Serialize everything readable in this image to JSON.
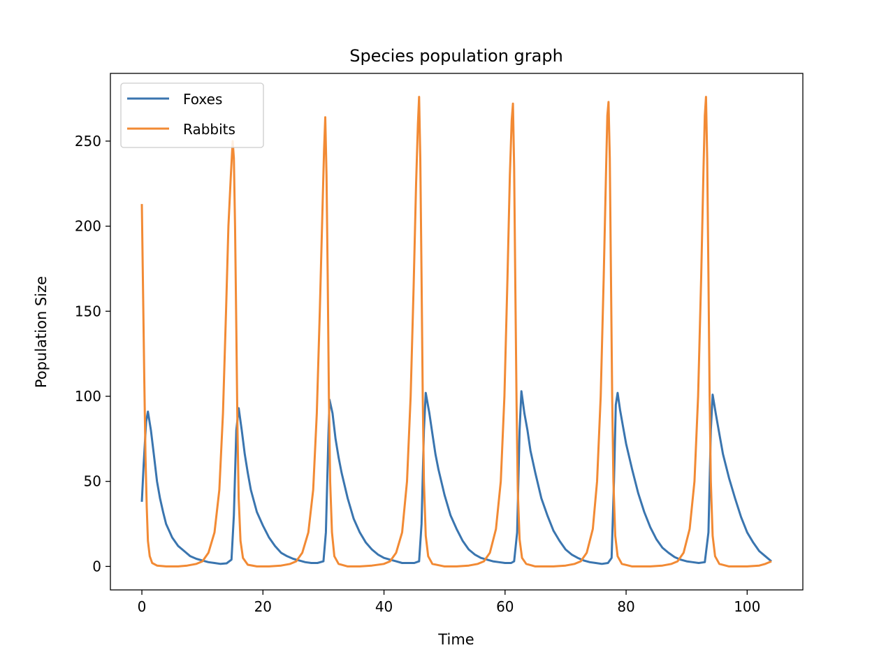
{
  "chart_data": {
    "type": "line",
    "title": "Species population graph",
    "xlabel": "Time",
    "ylabel": "Population Size",
    "xlim": [
      -5.2,
      109.2
    ],
    "ylim": [
      -13.8,
      289.8
    ],
    "xticks": [
      0,
      20,
      40,
      60,
      80,
      100
    ],
    "yticks": [
      0,
      50,
      100,
      150,
      200,
      250
    ],
    "grid": false,
    "legend_position": "top-left",
    "series": [
      {
        "name": "Foxes",
        "color": "#3a75af",
        "points": [
          [
            0,
            38
          ],
          [
            0.3,
            60
          ],
          [
            0.7,
            85
          ],
          [
            1.0,
            91
          ],
          [
            1.5,
            80
          ],
          [
            2.0,
            65
          ],
          [
            2.5,
            50
          ],
          [
            3.0,
            40
          ],
          [
            3.5,
            32
          ],
          [
            4.0,
            25
          ],
          [
            5.0,
            17
          ],
          [
            6.0,
            12
          ],
          [
            7.0,
            9
          ],
          [
            8.0,
            6
          ],
          [
            9.0,
            4.5
          ],
          [
            10.0,
            3.5
          ],
          [
            11.0,
            2.5
          ],
          [
            12.0,
            2
          ],
          [
            13.0,
            1.5
          ],
          [
            14.0,
            1.8
          ],
          [
            14.8,
            4
          ],
          [
            15.2,
            30
          ],
          [
            15.6,
            80
          ],
          [
            16.0,
            93
          ],
          [
            16.5,
            80
          ],
          [
            17.0,
            66
          ],
          [
            17.5,
            55
          ],
          [
            18.0,
            45
          ],
          [
            19.0,
            32
          ],
          [
            20.0,
            24
          ],
          [
            21.0,
            17
          ],
          [
            22.0,
            12
          ],
          [
            23.0,
            8
          ],
          [
            24.0,
            6
          ],
          [
            25.0,
            4.5
          ],
          [
            26.0,
            3.5
          ],
          [
            27.0,
            2.5
          ],
          [
            28.0,
            2
          ],
          [
            29.0,
            2
          ],
          [
            30.0,
            3
          ],
          [
            30.4,
            20
          ],
          [
            30.8,
            75
          ],
          [
            31.0,
            98
          ],
          [
            31.5,
            90
          ],
          [
            32.0,
            75
          ],
          [
            32.5,
            64
          ],
          [
            33.0,
            55
          ],
          [
            34.0,
            40
          ],
          [
            35.0,
            28
          ],
          [
            36.0,
            20
          ],
          [
            37.0,
            14
          ],
          [
            38.0,
            10
          ],
          [
            39.0,
            7
          ],
          [
            40.0,
            5
          ],
          [
            41.0,
            4
          ],
          [
            42.0,
            3
          ],
          [
            43.0,
            2
          ],
          [
            44.0,
            2
          ],
          [
            45.0,
            2
          ],
          [
            45.8,
            3
          ],
          [
            46.2,
            25
          ],
          [
            46.6,
            80
          ],
          [
            46.9,
            102
          ],
          [
            47.5,
            90
          ],
          [
            48.0,
            78
          ],
          [
            48.5,
            66
          ],
          [
            49.0,
            57
          ],
          [
            50.0,
            42
          ],
          [
            51.0,
            30
          ],
          [
            52.0,
            22
          ],
          [
            53.0,
            15
          ],
          [
            54.0,
            10
          ],
          [
            55.0,
            7
          ],
          [
            56.0,
            5
          ],
          [
            57.0,
            4
          ],
          [
            58.0,
            3
          ],
          [
            59.0,
            2.5
          ],
          [
            60.0,
            2
          ],
          [
            61.0,
            2
          ],
          [
            61.5,
            3
          ],
          [
            62.0,
            20
          ],
          [
            62.4,
            80
          ],
          [
            62.7,
            103
          ],
          [
            63.2,
            90
          ],
          [
            63.7,
            80
          ],
          [
            64.2,
            68
          ],
          [
            65.0,
            55
          ],
          [
            66.0,
            40
          ],
          [
            67.0,
            30
          ],
          [
            68.0,
            21
          ],
          [
            69.0,
            15
          ],
          [
            70.0,
            10
          ],
          [
            71.0,
            7
          ],
          [
            72.0,
            5
          ],
          [
            73.0,
            3.5
          ],
          [
            74.0,
            2.5
          ],
          [
            75.0,
            2
          ],
          [
            76.0,
            1.5
          ],
          [
            77.0,
            2
          ],
          [
            77.6,
            5
          ],
          [
            78.0,
            50
          ],
          [
            78.3,
            95
          ],
          [
            78.6,
            102
          ],
          [
            79.0,
            92
          ],
          [
            79.5,
            82
          ],
          [
            80.0,
            72
          ],
          [
            81.0,
            57
          ],
          [
            82.0,
            43
          ],
          [
            83.0,
            32
          ],
          [
            84.0,
            23
          ],
          [
            85.0,
            16
          ],
          [
            86.0,
            11
          ],
          [
            87.0,
            8
          ],
          [
            88.0,
            5.5
          ],
          [
            89.0,
            4
          ],
          [
            90.0,
            3
          ],
          [
            91.0,
            2.5
          ],
          [
            92.0,
            2
          ],
          [
            93.0,
            2.5
          ],
          [
            93.6,
            20
          ],
          [
            94.0,
            80
          ],
          [
            94.3,
            101
          ],
          [
            94.8,
            90
          ],
          [
            95.3,
            80
          ],
          [
            96.0,
            66
          ],
          [
            97.0,
            52
          ],
          [
            98.0,
            40
          ],
          [
            99.0,
            29
          ],
          [
            100.0,
            20
          ],
          [
            101.0,
            14
          ],
          [
            102.0,
            9
          ],
          [
            103.0,
            6
          ],
          [
            104.0,
            3
          ]
        ]
      },
      {
        "name": "Rabbits",
        "color": "#f28a34",
        "points": [
          [
            0,
            213
          ],
          [
            0.2,
            160
          ],
          [
            0.4,
            110
          ],
          [
            0.6,
            65
          ],
          [
            0.8,
            35
          ],
          [
            1.0,
            15
          ],
          [
            1.3,
            6
          ],
          [
            1.7,
            2
          ],
          [
            2.5,
            0.5
          ],
          [
            4.0,
            0
          ],
          [
            6.0,
            0
          ],
          [
            7.5,
            0.5
          ],
          [
            9.0,
            1.5
          ],
          [
            10.0,
            3
          ],
          [
            11.0,
            8
          ],
          [
            12.0,
            20
          ],
          [
            12.8,
            45
          ],
          [
            13.4,
            90
          ],
          [
            13.9,
            150
          ],
          [
            14.3,
            200
          ],
          [
            14.7,
            230
          ],
          [
            15.0,
            250
          ],
          [
            15.2,
            240
          ],
          [
            15.4,
            200
          ],
          [
            15.6,
            140
          ],
          [
            15.8,
            80
          ],
          [
            16.0,
            40
          ],
          [
            16.3,
            15
          ],
          [
            16.7,
            5
          ],
          [
            17.5,
            1
          ],
          [
            19.0,
            0
          ],
          [
            21.0,
            0
          ],
          [
            23.0,
            0.5
          ],
          [
            24.5,
            1.5
          ],
          [
            25.5,
            3
          ],
          [
            26.5,
            8
          ],
          [
            27.5,
            20
          ],
          [
            28.3,
            45
          ],
          [
            28.9,
            90
          ],
          [
            29.4,
            150
          ],
          [
            29.8,
            205
          ],
          [
            30.1,
            245
          ],
          [
            30.3,
            264
          ],
          [
            30.5,
            230
          ],
          [
            30.7,
            170
          ],
          [
            30.9,
            100
          ],
          [
            31.1,
            50
          ],
          [
            31.4,
            20
          ],
          [
            31.8,
            6
          ],
          [
            32.5,
            1.5
          ],
          [
            34.0,
            0
          ],
          [
            36.0,
            0
          ],
          [
            38.0,
            0.5
          ],
          [
            40.0,
            1.5
          ],
          [
            41.0,
            3
          ],
          [
            42.0,
            8
          ],
          [
            43.0,
            20
          ],
          [
            43.8,
            50
          ],
          [
            44.4,
            100
          ],
          [
            44.9,
            165
          ],
          [
            45.3,
            225
          ],
          [
            45.6,
            260
          ],
          [
            45.8,
            276
          ],
          [
            46.0,
            240
          ],
          [
            46.2,
            170
          ],
          [
            46.4,
            100
          ],
          [
            46.6,
            50
          ],
          [
            46.9,
            18
          ],
          [
            47.3,
            6
          ],
          [
            48.0,
            1.5
          ],
          [
            50.0,
            0
          ],
          [
            52.0,
            0
          ],
          [
            54.0,
            0.5
          ],
          [
            55.5,
            1.5
          ],
          [
            56.5,
            3
          ],
          [
            57.5,
            8
          ],
          [
            58.5,
            22
          ],
          [
            59.3,
            50
          ],
          [
            59.9,
            100
          ],
          [
            60.4,
            170
          ],
          [
            60.8,
            230
          ],
          [
            61.1,
            262
          ],
          [
            61.3,
            272
          ],
          [
            61.5,
            235
          ],
          [
            61.7,
            165
          ],
          [
            61.9,
            95
          ],
          [
            62.1,
            45
          ],
          [
            62.4,
            16
          ],
          [
            62.8,
            5
          ],
          [
            63.5,
            1.5
          ],
          [
            65.0,
            0
          ],
          [
            68.0,
            0
          ],
          [
            70.0,
            0.5
          ],
          [
            71.5,
            1.5
          ],
          [
            72.5,
            3
          ],
          [
            73.5,
            8
          ],
          [
            74.5,
            22
          ],
          [
            75.2,
            50
          ],
          [
            75.8,
            100
          ],
          [
            76.3,
            170
          ],
          [
            76.7,
            235
          ],
          [
            76.9,
            265
          ],
          [
            77.1,
            273
          ],
          [
            77.3,
            240
          ],
          [
            77.5,
            170
          ],
          [
            77.7,
            100
          ],
          [
            77.9,
            50
          ],
          [
            78.2,
            18
          ],
          [
            78.6,
            6
          ],
          [
            79.3,
            1.5
          ],
          [
            81.0,
            0
          ],
          [
            84.0,
            0
          ],
          [
            86.0,
            0.5
          ],
          [
            87.5,
            1.5
          ],
          [
            88.5,
            3
          ],
          [
            89.5,
            8
          ],
          [
            90.5,
            22
          ],
          [
            91.3,
            50
          ],
          [
            91.9,
            100
          ],
          [
            92.4,
            170
          ],
          [
            92.8,
            235
          ],
          [
            93.0,
            265
          ],
          [
            93.2,
            276
          ],
          [
            93.4,
            240
          ],
          [
            93.6,
            170
          ],
          [
            93.8,
            100
          ],
          [
            94.0,
            50
          ],
          [
            94.3,
            18
          ],
          [
            94.7,
            6
          ],
          [
            95.4,
            1.5
          ],
          [
            97.0,
            0
          ],
          [
            100.0,
            0
          ],
          [
            102.0,
            0.5
          ],
          [
            103.0,
            1.5
          ],
          [
            104.0,
            3
          ]
        ]
      }
    ]
  }
}
